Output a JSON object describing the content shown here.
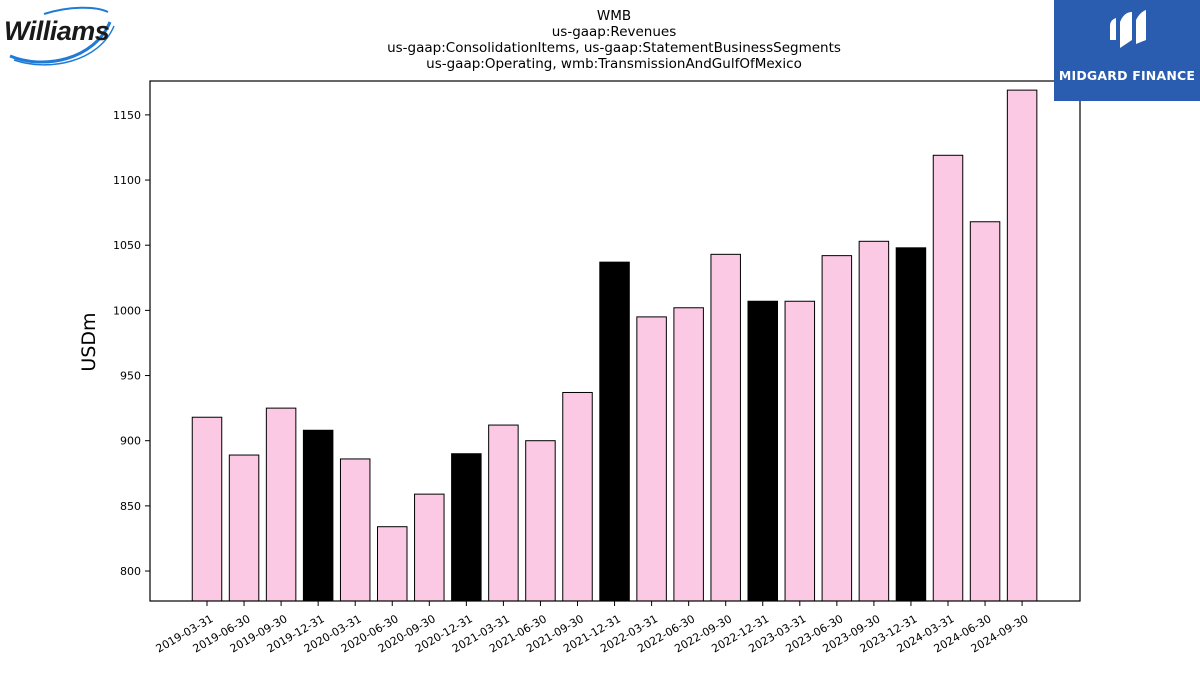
{
  "logos": {
    "left_text": "Williams",
    "right_text": "MIDGARD FINANCE"
  },
  "chart_data": {
    "type": "bar",
    "title_lines": [
      "WMB",
      "us-gaap:Revenues",
      "us-gaap:ConsolidationItems, us-gaap:StatementBusinessSegments",
      "us-gaap:Operating, wmb:TransmissionAndGulfOfMexico"
    ],
    "ylabel": "USDm",
    "xlabel": "",
    "ylim": [
      777,
      1176
    ],
    "yticks": [
      800,
      850,
      900,
      950,
      1000,
      1050,
      1100,
      1150
    ],
    "categories": [
      "2019-03-31",
      "2019-06-30",
      "2019-09-30",
      "2019-12-31",
      "2020-03-31",
      "2020-06-30",
      "2020-09-30",
      "2020-12-31",
      "2021-03-31",
      "2021-06-30",
      "2021-09-30",
      "2021-12-31",
      "2022-03-31",
      "2022-06-30",
      "2022-09-30",
      "2022-12-31",
      "2023-03-31",
      "2023-06-30",
      "2023-09-30",
      "2023-12-31",
      "2024-03-31",
      "2024-06-30",
      "2024-09-30"
    ],
    "values": [
      918,
      889,
      925,
      908,
      886,
      834,
      859,
      890,
      912,
      900,
      937,
      1037,
      995,
      1002,
      1043,
      1007,
      1007,
      1042,
      1053,
      1048,
      1119,
      1068,
      1169
    ],
    "bar_colors": [
      "#fbc9e4",
      "#fbc9e4",
      "#fbc9e4",
      "#000000",
      "#fbc9e4",
      "#fbc9e4",
      "#fbc9e4",
      "#000000",
      "#fbc9e4",
      "#fbc9e4",
      "#fbc9e4",
      "#000000",
      "#fbc9e4",
      "#fbc9e4",
      "#fbc9e4",
      "#000000",
      "#fbc9e4",
      "#fbc9e4",
      "#fbc9e4",
      "#000000",
      "#fbc9e4",
      "#fbc9e4",
      "#fbc9e4"
    ],
    "grid": false,
    "legend": "none",
    "colors": {
      "quarter": "#fbc9e4",
      "year_end": "#000000",
      "edge": "#000000"
    }
  }
}
